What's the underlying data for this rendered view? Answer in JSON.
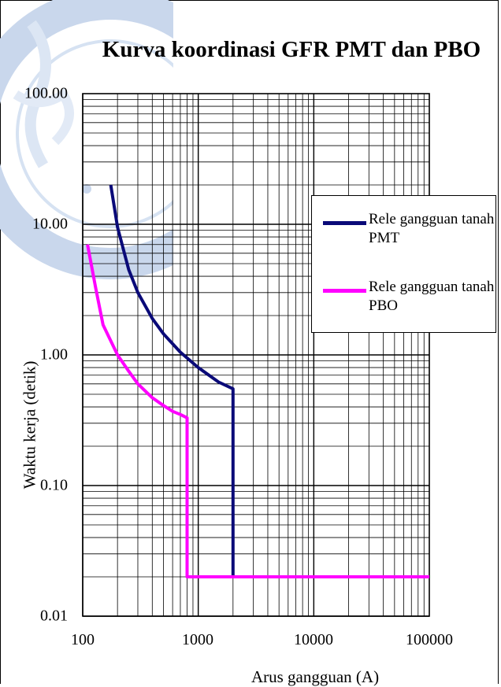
{
  "chart_data": {
    "type": "line",
    "title": "Kurva koordinasi GFR PMT dan PBO",
    "xlabel": "Arus gangguan (A)",
    "ylabel": "Waktu kerja (detik)",
    "x_scale": "log",
    "y_scale": "log",
    "xlim": [
      100,
      100000
    ],
    "ylim": [
      0.01,
      100
    ],
    "x_ticks": [
      "100",
      "1000",
      "10000",
      "100000"
    ],
    "y_ticks": [
      "100.00",
      "10.00",
      "1.00",
      "0.10",
      "0.01"
    ],
    "grid": true,
    "legend_position": "right",
    "series": [
      {
        "name": "Rele gangguan tanah PMT",
        "color": "#0a0a78",
        "x": [
          175,
          200,
          250,
          300,
          400,
          500,
          700,
          1000,
          1500,
          2000,
          2000,
          2000,
          100000
        ],
        "y": [
          20,
          9.5,
          4.5,
          3.0,
          1.9,
          1.45,
          1.05,
          0.8,
          0.62,
          0.55,
          0.3,
          0.02,
          0.02
        ]
      },
      {
        "name": "Rele gangguan tanah PBO",
        "color": "#ff00ff",
        "x": [
          110,
          130,
          150,
          200,
          250,
          300,
          400,
          500,
          600,
          700,
          800,
          800,
          800,
          100000
        ],
        "y": [
          7.0,
          3.2,
          1.7,
          1.0,
          0.75,
          0.6,
          0.47,
          0.41,
          0.37,
          0.35,
          0.33,
          0.1,
          0.02,
          0.02
        ]
      }
    ]
  }
}
